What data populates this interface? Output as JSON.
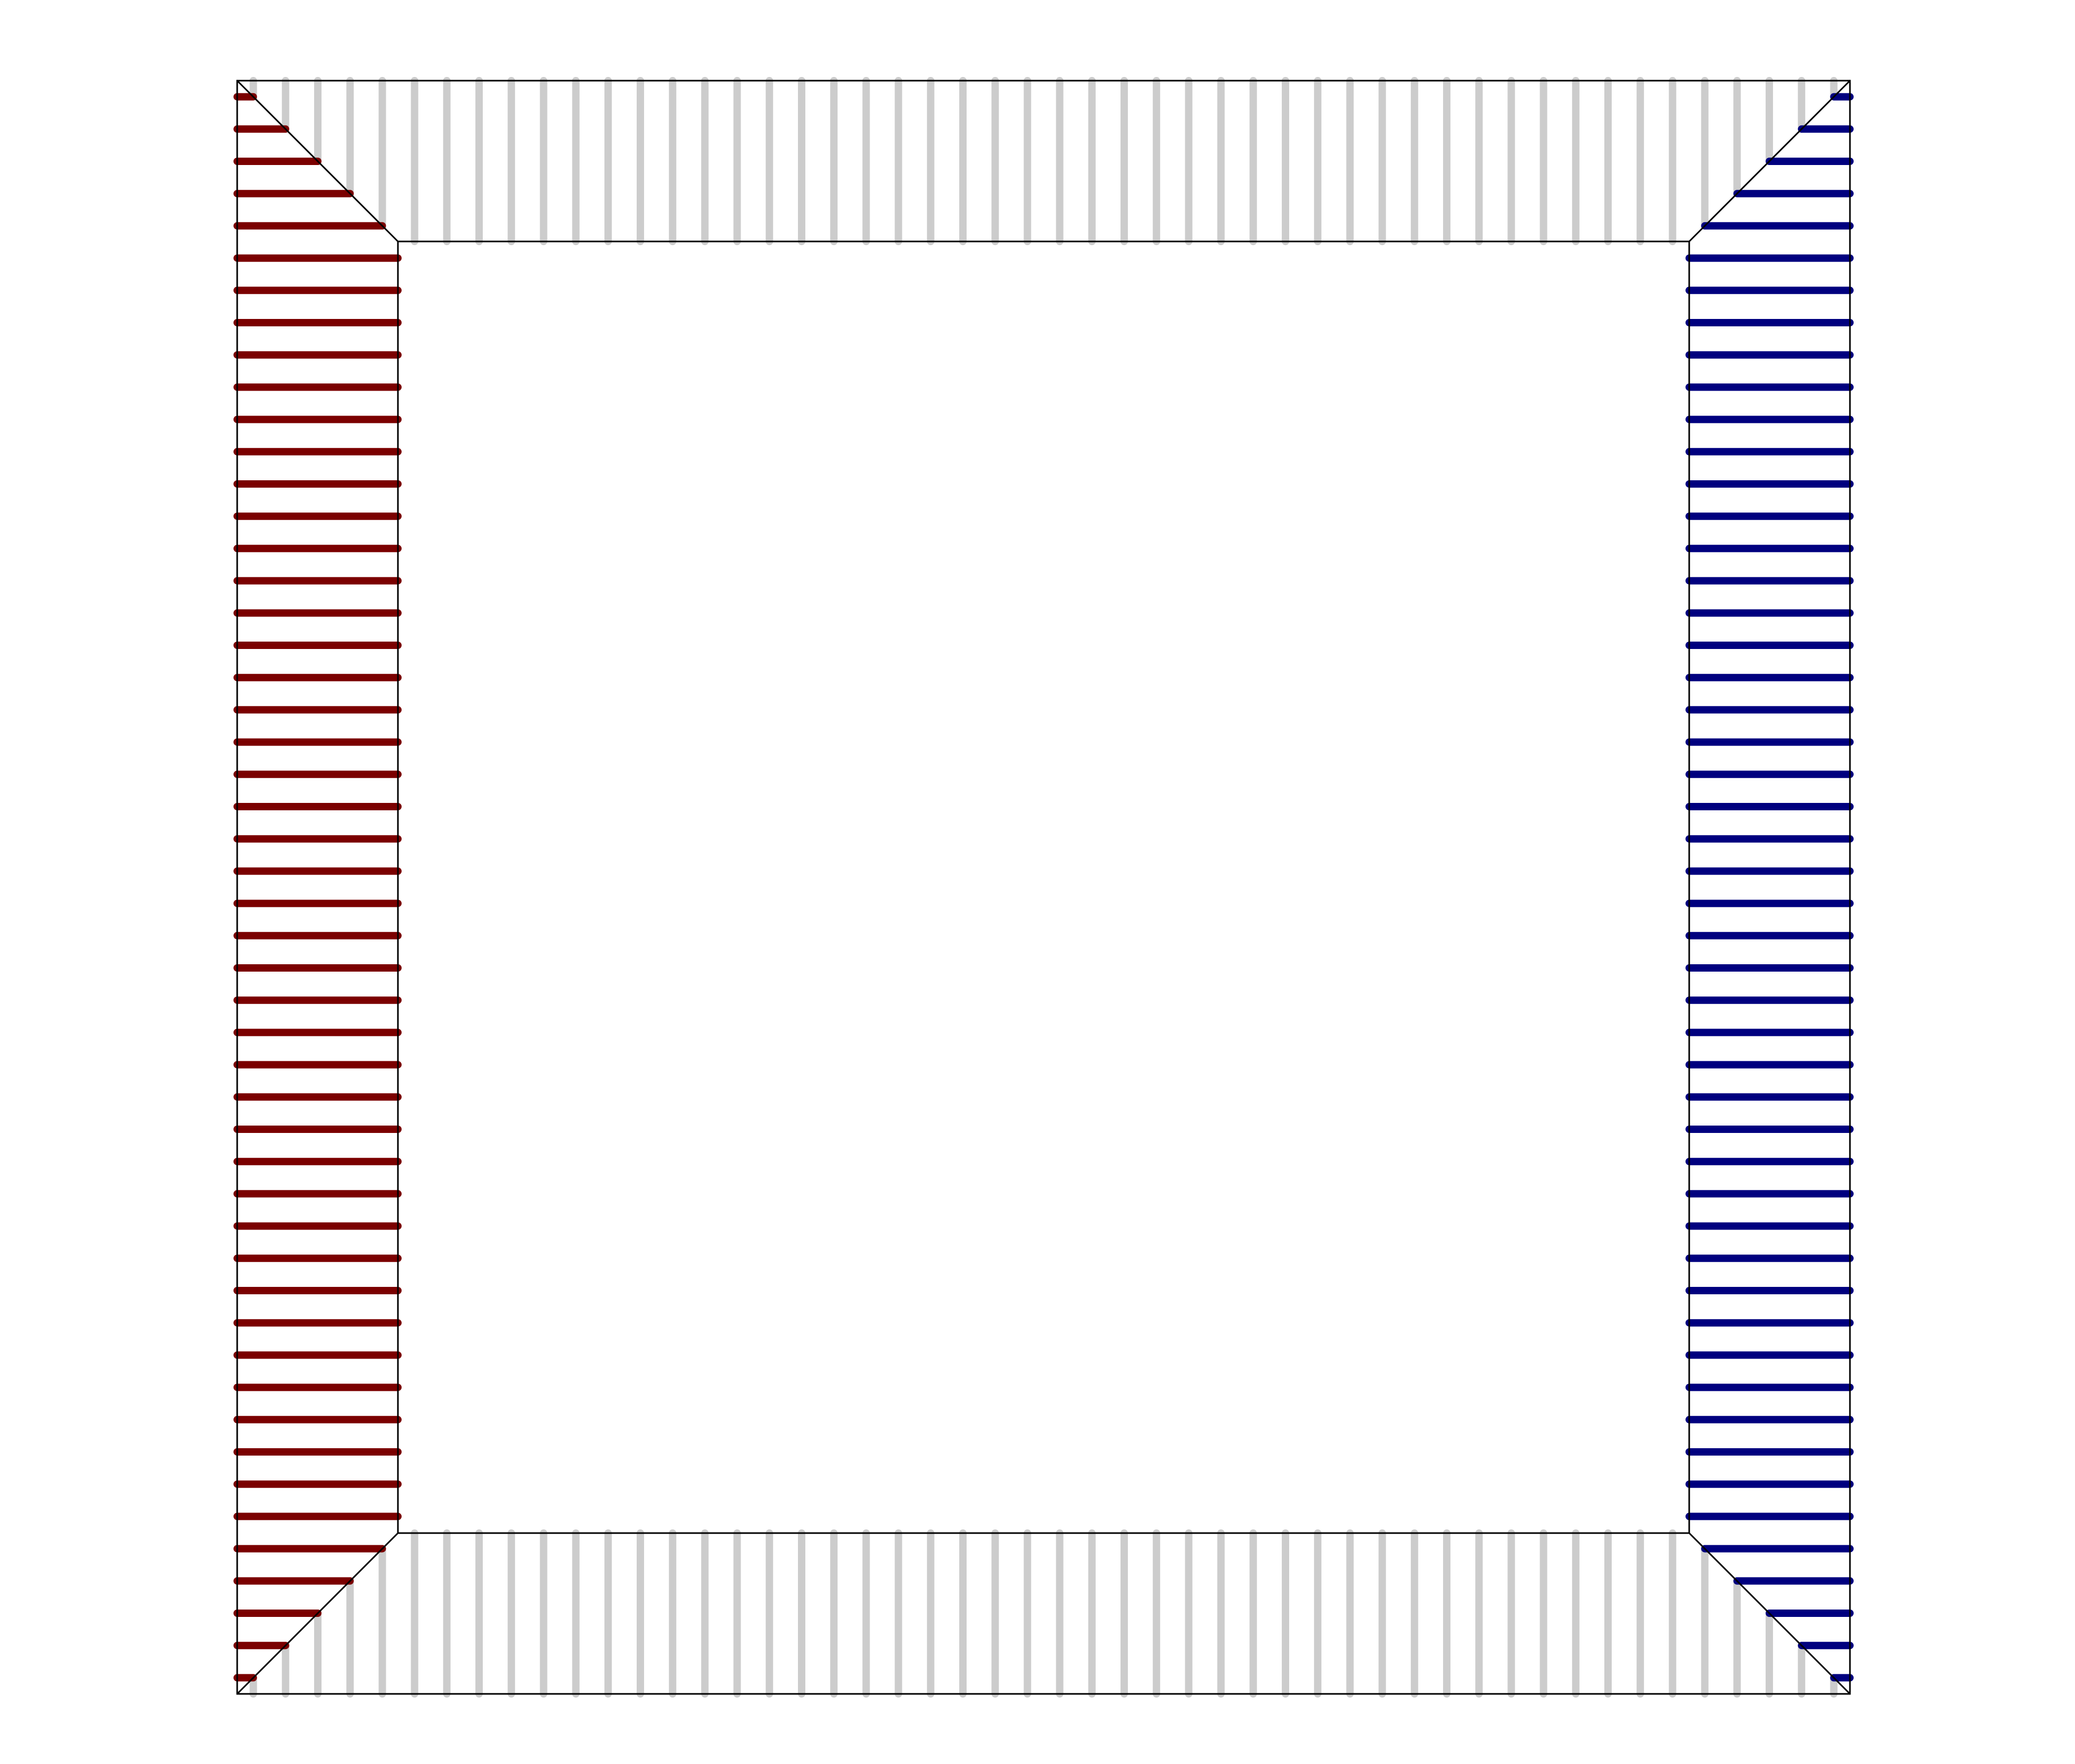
{
  "diagram": {
    "kind": "package-pin-map",
    "pins_per_side": 50,
    "sides": [
      {
        "side": "left",
        "pin_count": 50,
        "color": "#7b0000"
      },
      {
        "side": "right",
        "pin_count": 50,
        "color": "#00007f"
      },
      {
        "side": "top",
        "pin_count": 50,
        "color": "#cccccc"
      },
      {
        "side": "bottom",
        "pin_count": 50,
        "color": "#cccccc"
      }
    ],
    "outline_color": "#000000",
    "background": "#ffffff"
  }
}
